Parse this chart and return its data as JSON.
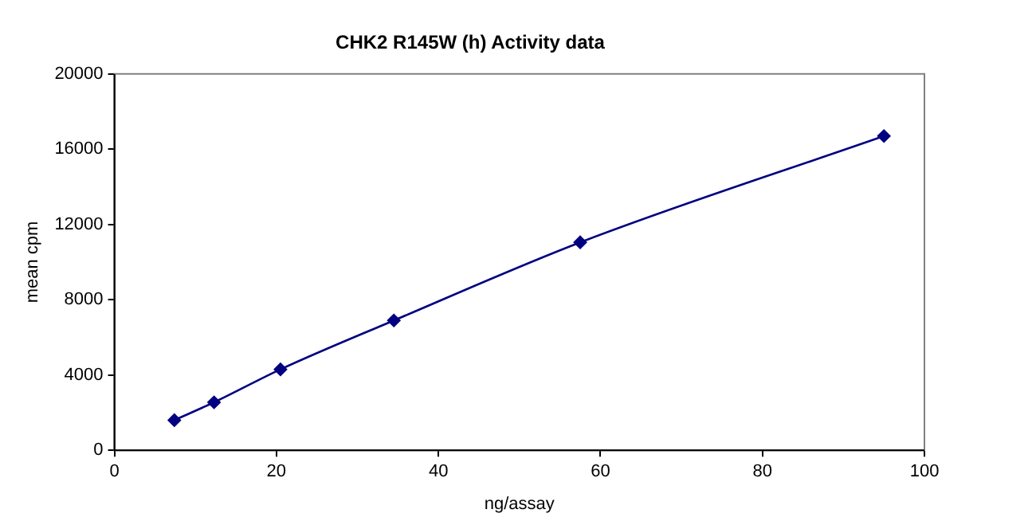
{
  "chart_data": {
    "type": "line",
    "title": "CHK2 R145W (h) Activity data",
    "xlabel": "ng/assay",
    "ylabel": "mean cpm",
    "x": [
      7.4,
      12.3,
      20.5,
      34.5,
      57.5,
      95
    ],
    "series": [
      {
        "color": "#000080",
        "values": [
          1600,
          2550,
          4300,
          6900,
          11050,
          16700
        ]
      }
    ],
    "xlim": [
      0,
      100
    ],
    "xticks": [
      0,
      20,
      40,
      60,
      80,
      100
    ],
    "ylim": [
      0,
      20000
    ],
    "yticks": [
      0,
      4000,
      8000,
      12000,
      16000,
      20000
    ],
    "grid": false,
    "legend": false,
    "marker": "diamond",
    "line_style": "solid"
  }
}
